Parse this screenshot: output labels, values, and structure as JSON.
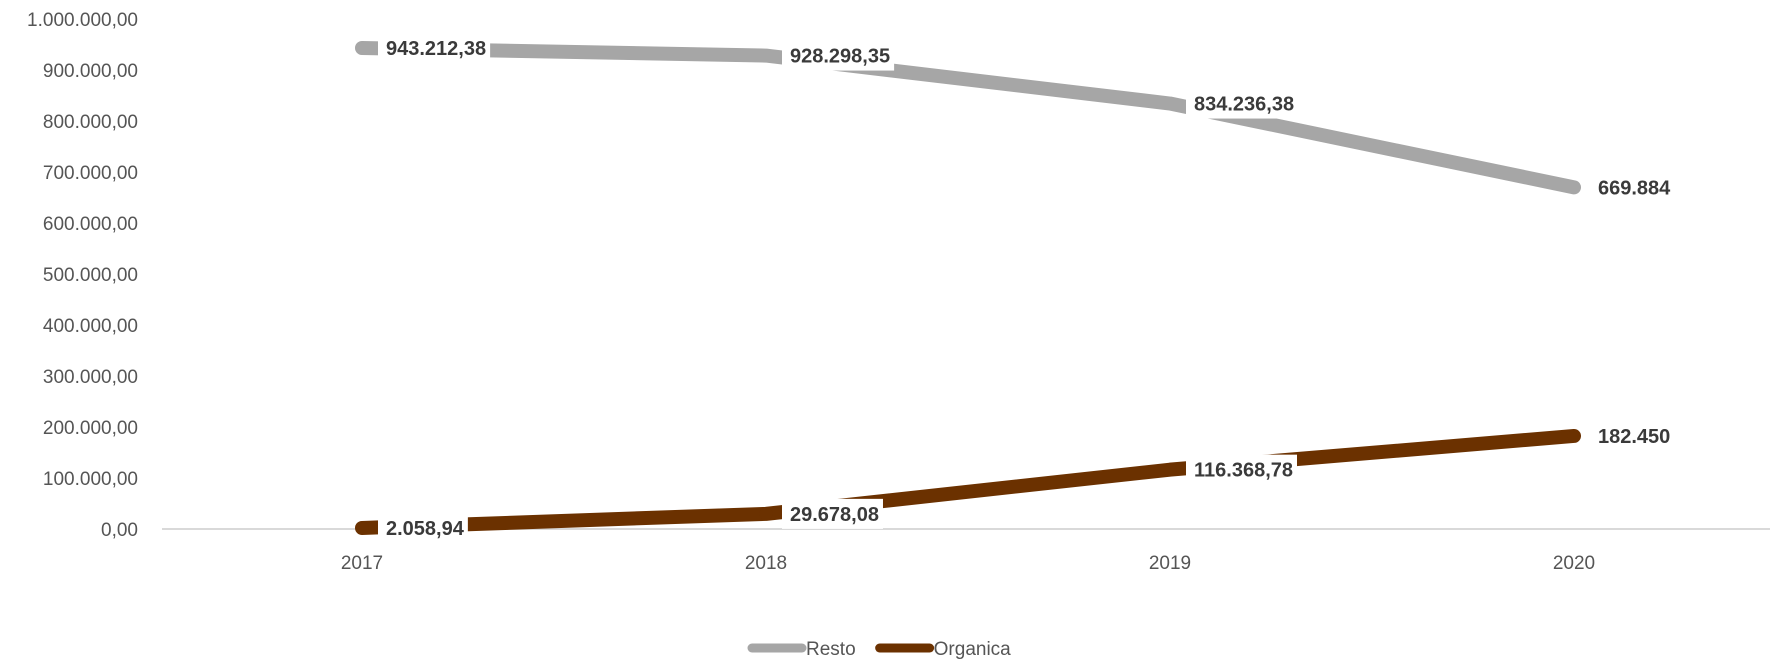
{
  "chart_data": {
    "type": "line",
    "title": "",
    "xlabel": "",
    "ylabel": "",
    "categories": [
      "2017",
      "2018",
      "2019",
      "2020"
    ],
    "ylim": [
      0,
      1000000
    ],
    "yticks": [
      "0,00",
      "100.000,00",
      "200.000,00",
      "300.000,00",
      "400.000,00",
      "500.000,00",
      "600.000,00",
      "700.000,00",
      "800.000,00",
      "900.000,00",
      "1.000.000,00"
    ],
    "grid": false,
    "legend_position": "bottom",
    "series": [
      {
        "name": "Resto",
        "color": "#a6a6a6",
        "values": [
          943212.38,
          928298.35,
          834236.38,
          669884
        ],
        "labels": [
          "943.212,38",
          "928.298,35",
          "834.236,38",
          "669.884"
        ]
      },
      {
        "name": "Organica",
        "color": "#6b3100",
        "values": [
          2058.94,
          29678.08,
          116368.78,
          182450
        ],
        "labels": [
          "2.058,94",
          "29.678,08",
          "116.368,78",
          "182.450"
        ]
      }
    ]
  }
}
